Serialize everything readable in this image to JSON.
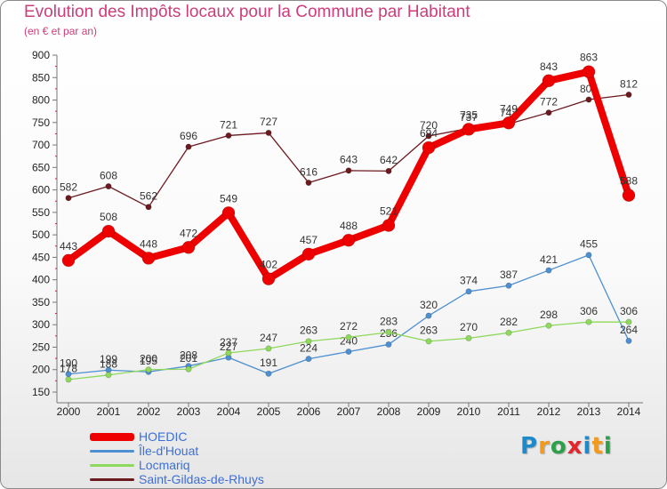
{
  "title": "Evolution des Impôts locaux pour la Commune par Habitant",
  "subtitle": "(en € et par an)",
  "logo": {
    "letters": [
      "P",
      "r",
      "o",
      "x",
      "i",
      "t",
      "i"
    ],
    "colors": [
      "#1f8ac9",
      "#f29a1d",
      "#2fa04a",
      "#e3252c",
      "#1f8ac9",
      "#f29a1d",
      "#2fa04a"
    ]
  },
  "chart_data": {
    "type": "line",
    "categories": [
      "2000",
      "2001",
      "2002",
      "2003",
      "2004",
      "2005",
      "2006",
      "2007",
      "2008",
      "2009",
      "2010",
      "2011",
      "2012",
      "2013",
      "2014"
    ],
    "ylim": [
      150,
      900
    ],
    "yticks": [
      150,
      200,
      250,
      300,
      350,
      400,
      450,
      500,
      550,
      600,
      650,
      700,
      750,
      800,
      850,
      900
    ],
    "grid": false,
    "legend_position": "bottom-left",
    "series": [
      {
        "name": "Saint-Gildas-de-Rhuys",
        "color": "#6b1a1f",
        "values": [
          582,
          608,
          562,
          696,
          721,
          727,
          616,
          643,
          642,
          720,
          737,
          747,
          772,
          801,
          812
        ]
      },
      {
        "name": "Île-d'Houat",
        "color": "#4d8fd0",
        "values": [
          190,
          199,
          195,
          208,
          227,
          191,
          224,
          240,
          256,
          320,
          374,
          387,
          421,
          455,
          264
        ]
      },
      {
        "name": "Locmariq",
        "color": "#8ed85c",
        "values": [
          178,
          188,
          200,
          201,
          237,
          247,
          263,
          272,
          283,
          263,
          270,
          282,
          298,
          306,
          306
        ]
      },
      {
        "name": "HOEDIC",
        "color": "#ee0000",
        "values": [
          443,
          508,
          448,
          472,
          549,
          402,
          457,
          488,
          521,
          694,
          735,
          749,
          843,
          863,
          588
        ]
      }
    ]
  }
}
